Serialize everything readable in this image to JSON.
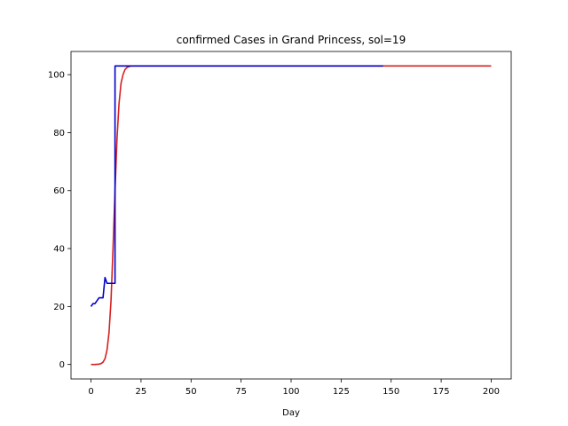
{
  "chart_data": {
    "type": "line",
    "title": "confirmed Cases in Grand Princess, sol=19",
    "xlabel": "Day",
    "ylabel": "",
    "xlim": [
      -10,
      210
    ],
    "ylim": [
      -5,
      108
    ],
    "xticks": [
      0,
      25,
      50,
      75,
      100,
      125,
      150,
      175,
      200
    ],
    "yticks": [
      0,
      20,
      40,
      60,
      80,
      100
    ],
    "grid": false,
    "series": [
      {
        "color": "#d62020",
        "x": [
          0,
          2,
          4,
          5,
          6,
          7,
          8,
          9,
          10,
          11,
          12,
          13,
          14,
          15,
          16,
          17,
          18,
          19,
          20,
          22,
          25,
          30,
          50,
          100,
          150,
          200
        ],
        "y": [
          0,
          0,
          0.1,
          0.3,
          0.8,
          2,
          5,
          11,
          22,
          40,
          60,
          78,
          90,
          97,
          100,
          101.8,
          102.5,
          102.8,
          103,
          103,
          103,
          103,
          103,
          103,
          103,
          103
        ]
      },
      {
        "color": "#0000cc",
        "x": [
          0,
          1,
          2,
          3,
          4,
          5,
          6,
          7,
          7,
          8,
          9,
          10,
          11,
          12,
          12,
          13,
          30,
          50,
          100,
          146
        ],
        "y": [
          20,
          21,
          21,
          22,
          23,
          23,
          23,
          30,
          30,
          28,
          28,
          28,
          28,
          28,
          103,
          103,
          103,
          103,
          103,
          103
        ]
      }
    ]
  }
}
